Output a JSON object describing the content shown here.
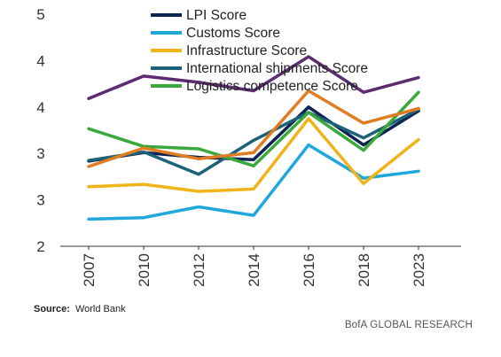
{
  "chart_data": {
    "type": "line",
    "categories": [
      "2007",
      "2010",
      "2012",
      "2014",
      "2016",
      "2018",
      "2023"
    ],
    "y_tick_labels": [
      "5",
      "4",
      "4",
      "3",
      "3",
      "2"
    ],
    "ylim": [
      2,
      5
    ],
    "grid": false,
    "legend_position": "top-center",
    "series": [
      {
        "name": "LPI Score",
        "color": "#0d2352",
        "values": [
          3.1,
          3.21,
          3.15,
          3.12,
          3.8,
          3.31,
          3.75
        ]
      },
      {
        "name": "Customs Score",
        "color": "#1fa8dc",
        "values": [
          2.35,
          2.37,
          2.51,
          2.4,
          3.31,
          2.88,
          2.97
        ]
      },
      {
        "name": "Infrastructure Score",
        "color": "#f0b31a",
        "values": [
          2.77,
          2.8,
          2.71,
          2.74,
          3.65,
          2.81,
          3.38
        ]
      },
      {
        "name": "International shipments Score",
        "color": "#1d6278",
        "values": [
          3.11,
          3.22,
          2.93,
          3.37,
          3.73,
          3.4,
          3.77
        ]
      },
      {
        "name": "Logistics competence Score",
        "color": "#3aa83a",
        "values": [
          3.52,
          3.29,
          3.26,
          3.04,
          3.73,
          3.24,
          3.99
        ]
      },
      {
        "name": "",
        "color": "#5b2c6f",
        "values": [
          3.91,
          4.2,
          4.12,
          4.01,
          4.45,
          3.99,
          4.18
        ]
      },
      {
        "name": "",
        "color": "#e07d23",
        "values": [
          3.03,
          3.27,
          3.13,
          3.21,
          4.01,
          3.59,
          3.78
        ]
      }
    ]
  },
  "footer": {
    "source_label": "Source:",
    "source_text": "World Bank",
    "brand": "BofA GLOBAL RESEARCH"
  }
}
